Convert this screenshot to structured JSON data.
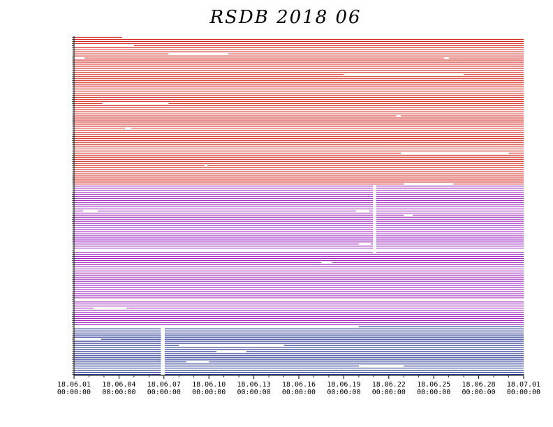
{
  "chart_data": {
    "type": "line",
    "title": "RSDB  2018  06",
    "xlabel": "",
    "ylabel": "",
    "grid": false,
    "legend": "none",
    "x_range": [
      "18.06.01 00:00:00",
      "18.07.01 00:00:00"
    ],
    "x_tick_labels": [
      {
        "date": "18.06.01",
        "time": "00:00:00"
      },
      {
        "date": "18.06.04",
        "time": "00:00:00"
      },
      {
        "date": "18.06.07",
        "time": "00:00:00"
      },
      {
        "date": "18.06.10",
        "time": "00:00:00"
      },
      {
        "date": "18.06.13",
        "time": "00:00:00"
      },
      {
        "date": "18.06.16",
        "time": "00:00:00"
      },
      {
        "date": "18.06.19",
        "time": "00:00:00"
      },
      {
        "date": "18.06.22",
        "time": "00:00:00"
      },
      {
        "date": "18.06.25",
        "time": "00:00:00"
      },
      {
        "date": "18.06.28",
        "time": "00:00:00"
      },
      {
        "date": "18.07.01",
        "time": "00:00:00"
      }
    ],
    "groups": [
      {
        "color": "#d4271e",
        "row_count": 72
      },
      {
        "color": "#a12ac0",
        "row_count": 68
      },
      {
        "color": "#1c2b8c",
        "row_count": 24
      }
    ],
    "gaps": [
      {
        "group": 0,
        "row": 0,
        "start_day": 3.2,
        "end_day": 30.0
      },
      {
        "group": 0,
        "row": 4,
        "start_day": 0.0,
        "end_day": 4.0
      },
      {
        "group": 0,
        "row": 8,
        "start_day": 6.3,
        "end_day": 10.3
      },
      {
        "group": 0,
        "row": 10,
        "start_day": 0.0,
        "end_day": 0.7
      },
      {
        "group": 0,
        "row": 10,
        "start_day": 24.7,
        "end_day": 25.0
      },
      {
        "group": 0,
        "row": 18,
        "start_day": 18.0,
        "end_day": 26.0
      },
      {
        "group": 0,
        "row": 32,
        "start_day": 1.9,
        "end_day": 6.3
      },
      {
        "group": 0,
        "row": 38,
        "start_day": 21.5,
        "end_day": 21.8
      },
      {
        "group": 0,
        "row": 44,
        "start_day": 3.4,
        "end_day": 3.8
      },
      {
        "group": 0,
        "row": 56,
        "start_day": 21.8,
        "end_day": 29.0
      },
      {
        "group": 0,
        "row": 62,
        "start_day": 8.7,
        "end_day": 8.9
      },
      {
        "group": 0,
        "row": 71,
        "start_day": 22.0,
        "end_day": 25.3
      },
      {
        "group": 1,
        "row": 12,
        "start_day": 0.6,
        "end_day": 1.6
      },
      {
        "group": 1,
        "row": 12,
        "start_day": 18.8,
        "end_day": 19.7
      },
      {
        "group": 1,
        "row": 14,
        "start_day": 22.0,
        "end_day": 22.6
      },
      {
        "group": 1,
        "row": 28,
        "start_day": 19.0,
        "end_day": 19.8
      },
      {
        "group": 1,
        "row": 31,
        "start_day": 0.0,
        "end_day": 30.0
      },
      {
        "group": 1,
        "row": 37,
        "start_day": 16.5,
        "end_day": 17.2
      },
      {
        "group": 1,
        "row": 55,
        "start_day": 0.0,
        "end_day": 30.0
      },
      {
        "group": 1,
        "row": 59,
        "start_day": 1.3,
        "end_day": 3.5
      },
      {
        "group": 2,
        "row": 0,
        "start_day": 0.0,
        "end_day": 19.0
      },
      {
        "group": 2,
        "row": 6,
        "start_day": 0.0,
        "end_day": 1.8
      },
      {
        "group": 2,
        "row": 9,
        "start_day": 7.0,
        "end_day": 14.0
      },
      {
        "group": 2,
        "row": 12,
        "start_day": 9.5,
        "end_day": 11.5
      },
      {
        "group": 2,
        "row": 17,
        "start_day": 7.5,
        "end_day": 9.0
      },
      {
        "group": 2,
        "row": 19,
        "start_day": 19.0,
        "end_day": 22.0
      }
    ],
    "vertical_gaps": [
      {
        "start_day": 5.8,
        "end_day": 6.05,
        "from_group": 2
      },
      {
        "start_day": 19.95,
        "end_day": 20.15,
        "group": 1,
        "from_row": 0,
        "to_row": 32
      }
    ]
  }
}
